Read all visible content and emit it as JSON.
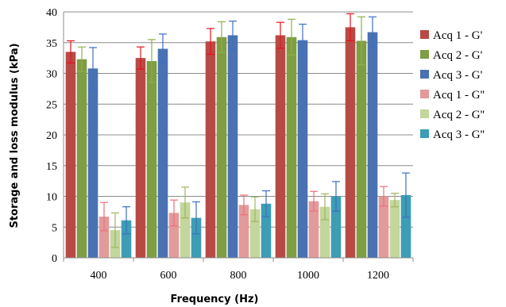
{
  "chart_data": {
    "type": "bar",
    "title": "",
    "xlabel": "Frequency (Hz)",
    "ylabel": "Storage and loss modulus (kPa)",
    "ylim": [
      0,
      40
    ],
    "yticks": [
      0,
      5,
      10,
      15,
      20,
      25,
      30,
      35,
      40
    ],
    "grid": true,
    "legend_position": "right",
    "categories": [
      "400",
      "600",
      "800",
      "1000",
      "1200"
    ],
    "series": [
      {
        "name": "Acq 1 - G'",
        "color": "#B84A46",
        "error_color": "#e8121a",
        "values": [
          33.5,
          32.5,
          35.2,
          36.2,
          37.5
        ],
        "errors": [
          1.8,
          1.8,
          2.1,
          2.1,
          2.2
        ]
      },
      {
        "name": "Acq 2 - G'",
        "color": "#7F9D43",
        "error_color": "#8db045",
        "values": [
          32.3,
          32.0,
          35.9,
          35.9,
          35.3
        ],
        "errors": [
          2.0,
          3.5,
          2.5,
          2.9,
          3.9
        ]
      },
      {
        "name": "Acq 3 - G'",
        "color": "#4A72B2",
        "error_color": "#3e6fc2",
        "values": [
          30.8,
          34.0,
          36.2,
          35.4,
          36.7
        ],
        "errors": [
          3.4,
          2.4,
          2.3,
          2.6,
          2.5
        ]
      },
      {
        "name": "Acq 1 - G''",
        "color": "#E39A9A",
        "error_color": "#ef6f78",
        "values": [
          6.7,
          7.3,
          8.6,
          9.2,
          10.0
        ],
        "errors": [
          2.3,
          2.1,
          1.6,
          1.6,
          1.6
        ]
      },
      {
        "name": "Acq 2 - G''",
        "color": "#C3D69B",
        "error_color": "#9fb65f",
        "values": [
          4.5,
          9.0,
          7.9,
          8.3,
          9.4
        ],
        "errors": [
          2.8,
          2.5,
          2.0,
          2.1,
          1.1
        ]
      },
      {
        "name": "Acq 3 - G''",
        "color": "#3C9DB4",
        "error_color": "#3e6fc2",
        "values": [
          6.1,
          6.5,
          8.8,
          10.0,
          10.2
        ],
        "errors": [
          2.2,
          2.6,
          2.1,
          2.4,
          3.6
        ]
      }
    ]
  }
}
